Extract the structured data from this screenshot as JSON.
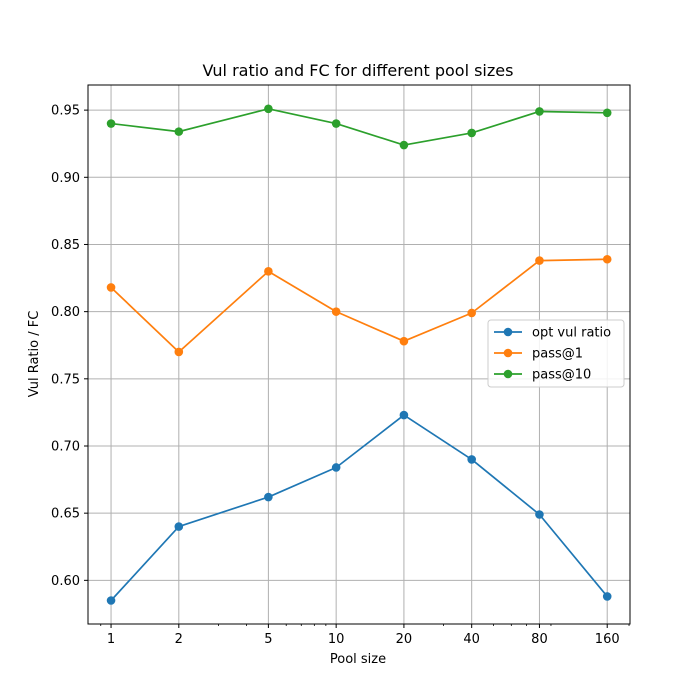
{
  "chart_data": {
    "type": "line",
    "title": "Vul ratio and FC for different pool sizes",
    "xlabel": "Pool size",
    "ylabel": "Vul Ratio / FC",
    "x_scale": "log",
    "x": [
      1,
      2,
      5,
      10,
      20,
      40,
      80,
      160
    ],
    "x_tick_labels": [
      "1",
      "2",
      "5",
      "10",
      "20",
      "40",
      "80",
      "160"
    ],
    "xlim": [
      0.79,
      202
    ],
    "ylim": [
      0.5675,
      0.9687
    ],
    "y_ticks": [
      0.6,
      0.65,
      0.7,
      0.75,
      0.8,
      0.85,
      0.9,
      0.95
    ],
    "y_tick_labels": [
      "0.60",
      "0.65",
      "0.70",
      "0.75",
      "0.80",
      "0.85",
      "0.90",
      "0.95"
    ],
    "grid": true,
    "legend_position": "center-right",
    "series": [
      {
        "name": "opt vul ratio",
        "color": "#1f77b4",
        "values": [
          0.585,
          0.64,
          0.662,
          0.684,
          0.723,
          0.69,
          0.649,
          0.588
        ]
      },
      {
        "name": "pass@1",
        "color": "#ff7f0e",
        "values": [
          0.818,
          0.77,
          0.83,
          0.8,
          0.778,
          0.799,
          0.838,
          0.839
        ]
      },
      {
        "name": "pass@10",
        "color": "#2ca02c",
        "values": [
          0.94,
          0.934,
          0.951,
          0.94,
          0.924,
          0.933,
          0.949,
          0.948
        ]
      }
    ]
  }
}
